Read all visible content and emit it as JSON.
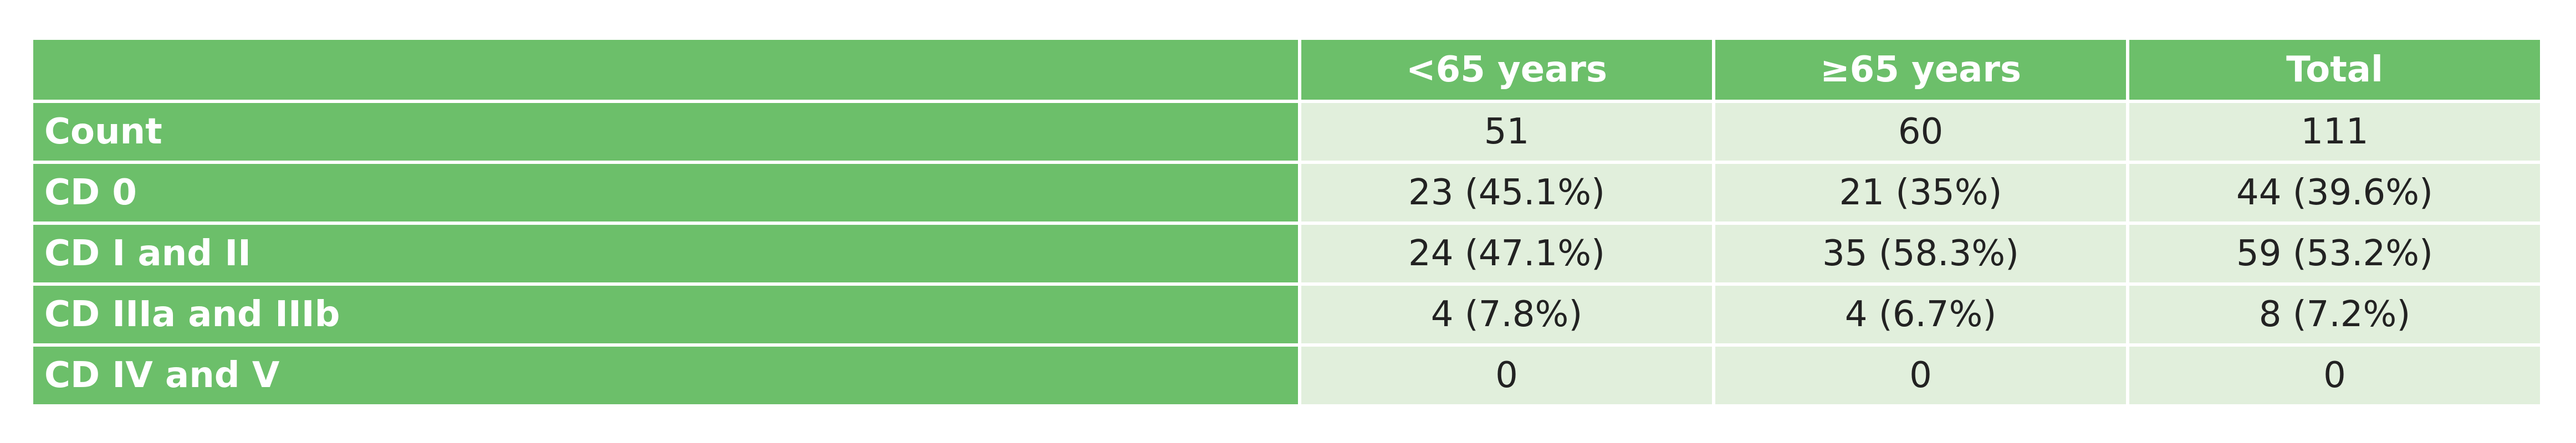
{
  "table": {
    "header": [
      "<65 years",
      "≥65 years",
      "Total"
    ],
    "rows": [
      {
        "label": "Count",
        "cells": [
          "51",
          "60",
          "111"
        ]
      },
      {
        "label": "CD 0",
        "cells": [
          "23 (45.1%)",
          "21 (35%)",
          "44 (39.6%)"
        ]
      },
      {
        "label": "CD I and II",
        "cells": [
          "24 (47.1%)",
          "35 (58.3%)",
          "59 (53.2%)"
        ]
      },
      {
        "label": "CD IIIa and IIIb",
        "cells": [
          "4 (7.8%)",
          "4 (6.7%)",
          "8 (7.2%)"
        ]
      },
      {
        "label": "CD IV and V",
        "cells": [
          "0",
          "0",
          "0"
        ]
      }
    ]
  }
}
